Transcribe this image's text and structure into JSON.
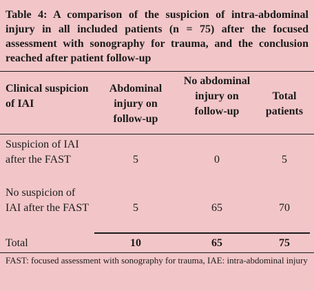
{
  "caption": "Table 4: A comparison of the suspicion of intra-abdominal injury in all included patients (n = 75) after the focused assessment with sonography for trauma, and the conclusion reached after patient follow-up",
  "headers": {
    "col1": "Clinical suspicion of IAI",
    "col2": "Abdominal injury on follow-up",
    "col3": "No abdominal injury on follow-up",
    "col4": "Total patients"
  },
  "rows": [
    {
      "label": "Suspicion of IAI after the FAST",
      "v1": "5",
      "v2": "0",
      "v3": "5"
    },
    {
      "label": "No suspicion of IAI after the FAST",
      "v1": "5",
      "v2": "65",
      "v3": "70"
    }
  ],
  "total": {
    "label": "Total",
    "v1": "10",
    "v2": "65",
    "v3": "75"
  },
  "footnote": "FAST: focused assessment with sonography for trauma, IAE: intra-abdominal injury"
}
